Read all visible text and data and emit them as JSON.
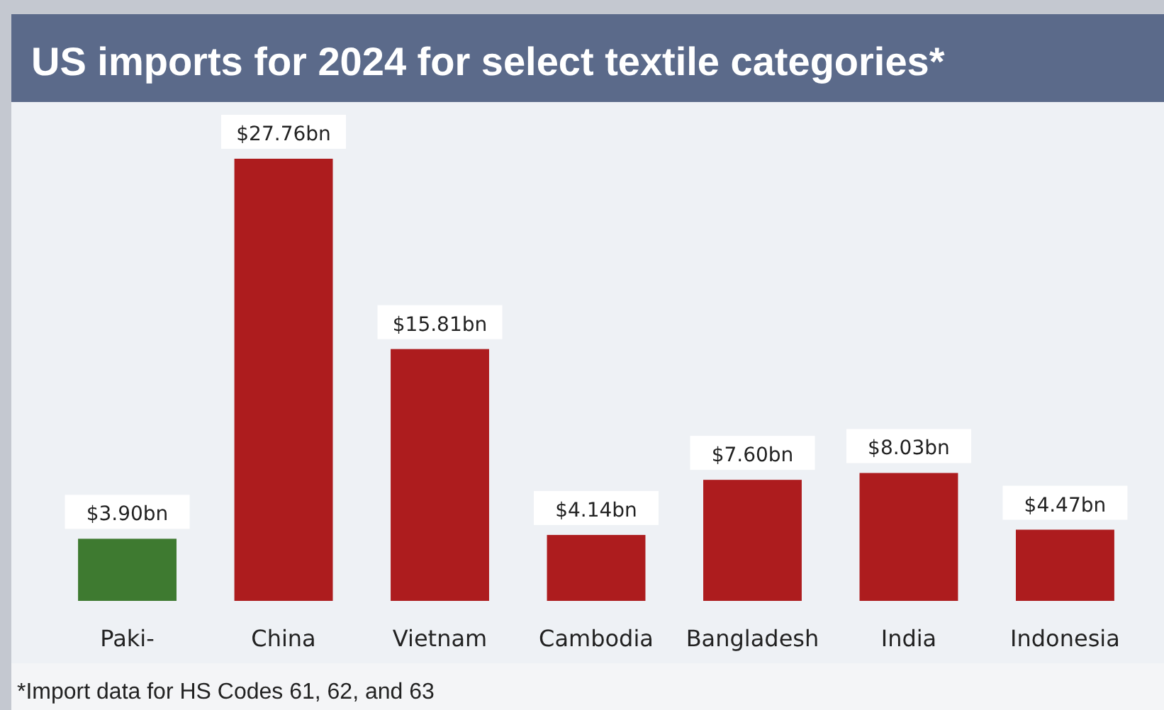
{
  "chart_data": {
    "type": "bar",
    "title": "US imports for 2024 for select textile categories*",
    "categories": [
      "Paki-",
      "China",
      "Vietnam",
      "Cambodia",
      "Bangladesh",
      "India",
      "Indonesia"
    ],
    "values": [
      3.9,
      27.76,
      15.81,
      4.14,
      7.6,
      8.03,
      4.47
    ],
    "colors": [
      "#3e7a30",
      "#ad1c1e",
      "#ad1c1e",
      "#ad1c1e",
      "#ad1c1e",
      "#ad1c1e",
      "#ad1c1e"
    ],
    "value_labels": [
      "$3.90bn",
      "$27.76bn",
      "$15.81bn",
      "$4.14bn",
      "$7.60bn",
      "$8.03bn",
      "$4.47bn"
    ],
    "annotations": [
      "*Import data for HS Codes 61, 62, and 63"
    ]
  }
}
